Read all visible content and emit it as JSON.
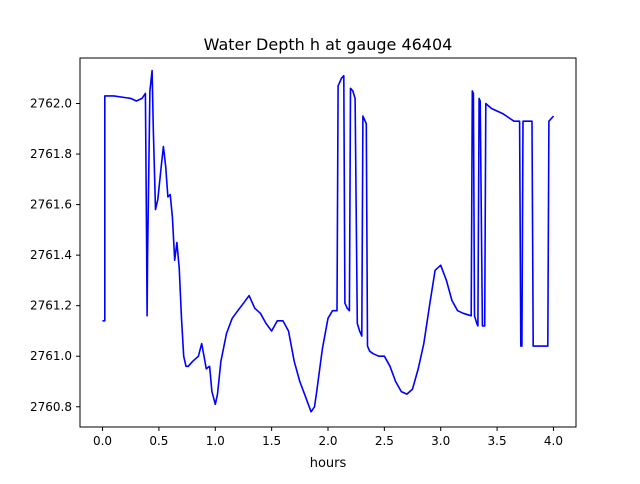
{
  "chart_data": {
    "type": "line",
    "title": "Water Depth h at gauge 46404",
    "xlabel": "hours",
    "ylabel": "",
    "xlim": [
      -0.2,
      4.2
    ],
    "ylim": [
      2760.72,
      2762.18
    ],
    "xticks": [
      0.0,
      0.5,
      1.0,
      1.5,
      2.0,
      2.5,
      3.0,
      3.5,
      4.0
    ],
    "xtick_labels": [
      "0.0",
      "0.5",
      "1.0",
      "1.5",
      "2.0",
      "2.5",
      "3.0",
      "3.5",
      "4.0"
    ],
    "yticks": [
      2760.8,
      2761.0,
      2761.2,
      2761.4,
      2761.6,
      2761.8,
      2762.0
    ],
    "ytick_labels": [
      "2760.8",
      "2761.0",
      "2761.2",
      "2761.4",
      "2761.6",
      "2761.8",
      "2762.0"
    ],
    "grid": false,
    "series": [
      {
        "color": "#0000ff",
        "x": [
          0.0,
          0.02,
          0.02,
          0.1,
          0.25,
          0.3,
          0.35,
          0.38,
          0.39,
          0.395,
          0.4,
          0.42,
          0.44,
          0.45,
          0.47,
          0.49,
          0.52,
          0.54,
          0.56,
          0.58,
          0.6,
          0.62,
          0.64,
          0.66,
          0.68,
          0.7,
          0.72,
          0.74,
          0.76,
          0.8,
          0.85,
          0.88,
          0.9,
          0.92,
          0.95,
          0.97,
          1.0,
          1.02,
          1.05,
          1.1,
          1.15,
          1.2,
          1.25,
          1.3,
          1.35,
          1.4,
          1.45,
          1.5,
          1.55,
          1.6,
          1.65,
          1.7,
          1.75,
          1.8,
          1.85,
          1.88,
          1.9,
          1.95,
          2.0,
          2.04,
          2.08,
          2.09,
          2.1,
          2.12,
          2.14,
          2.15,
          2.17,
          2.19,
          2.2,
          2.22,
          2.24,
          2.26,
          2.28,
          2.3,
          2.31,
          2.32,
          2.34,
          2.35,
          2.37,
          2.4,
          2.45,
          2.5,
          2.55,
          2.6,
          2.65,
          2.7,
          2.75,
          2.8,
          2.85,
          2.9,
          2.95,
          3.0,
          3.05,
          3.1,
          3.15,
          3.2,
          3.27,
          3.28,
          3.29,
          3.3,
          3.32,
          3.33,
          3.34,
          3.35,
          3.37,
          3.38,
          3.39,
          3.4,
          3.45,
          3.55,
          3.65,
          3.7,
          3.71,
          3.72,
          3.73,
          3.74,
          3.8,
          3.81,
          3.82,
          3.9,
          3.94,
          3.95,
          3.96,
          4.0
        ],
        "y": [
          2761.14,
          2761.14,
          2762.03,
          2762.03,
          2762.02,
          2762.01,
          2762.02,
          2762.04,
          2761.5,
          2761.16,
          2761.4,
          2762.05,
          2762.13,
          2761.9,
          2761.58,
          2761.62,
          2761.75,
          2761.83,
          2761.75,
          2761.63,
          2761.64,
          2761.55,
          2761.38,
          2761.45,
          2761.35,
          2761.15,
          2761.0,
          2760.96,
          2760.96,
          2760.98,
          2761.0,
          2761.05,
          2761.0,
          2760.95,
          2760.96,
          2760.86,
          2760.81,
          2760.85,
          2760.98,
          2761.09,
          2761.15,
          2761.18,
          2761.21,
          2761.24,
          2761.19,
          2761.17,
          2761.13,
          2761.1,
          2761.14,
          2761.14,
          2761.1,
          2760.98,
          2760.9,
          2760.84,
          2760.78,
          2760.8,
          2760.86,
          2761.03,
          2761.15,
          2761.18,
          2761.18,
          2762.07,
          2762.08,
          2762.1,
          2762.11,
          2761.21,
          2761.19,
          2761.18,
          2762.06,
          2762.05,
          2762.02,
          2761.13,
          2761.1,
          2761.08,
          2761.95,
          2761.94,
          2761.92,
          2761.04,
          2761.02,
          2761.01,
          2761.0,
          2761.0,
          2760.96,
          2760.9,
          2760.86,
          2760.85,
          2760.87,
          2760.95,
          2761.05,
          2761.2,
          2761.34,
          2761.36,
          2761.3,
          2761.22,
          2761.18,
          2761.17,
          2761.16,
          2762.05,
          2762.04,
          2761.16,
          2761.13,
          2761.12,
          2762.02,
          2762.01,
          2761.12,
          2761.12,
          2761.12,
          2762.0,
          2761.98,
          2761.96,
          2761.93,
          2761.93,
          2761.04,
          2761.04,
          2761.93,
          2761.93,
          2761.93,
          2761.93,
          2761.04,
          2761.04,
          2761.04,
          2761.04,
          2761.93,
          2761.95
        ]
      }
    ]
  }
}
